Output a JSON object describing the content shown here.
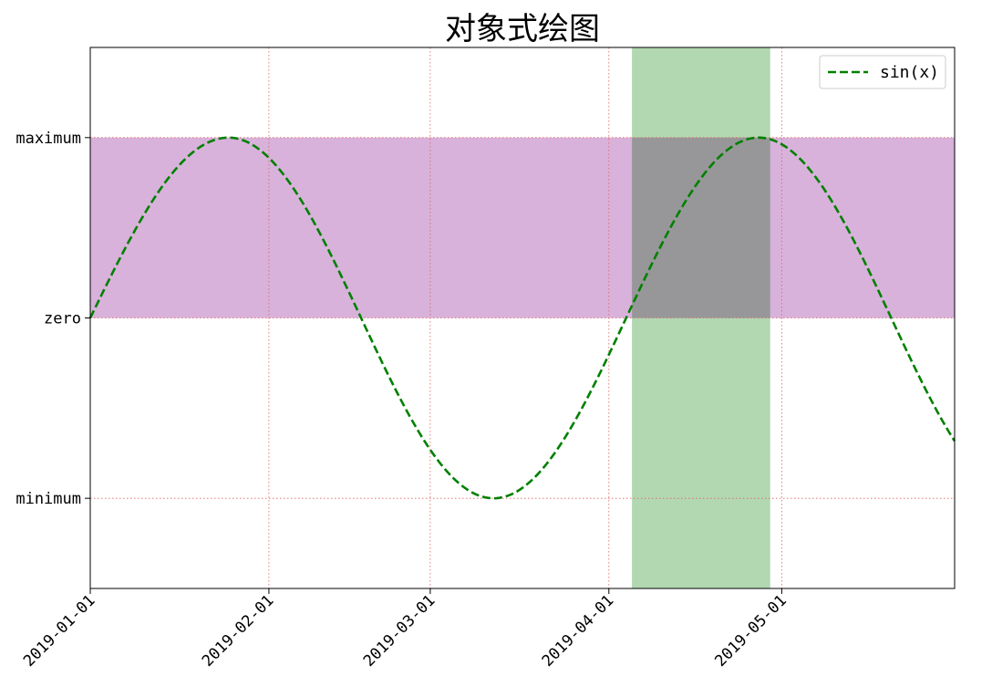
{
  "chart_data": {
    "type": "line",
    "title": "对象式绘图",
    "xlabel": "",
    "ylabel": "",
    "x_axis": {
      "type": "date",
      "range": [
        "2019-01-01",
        "2019-05-31"
      ],
      "ticks": [
        "2019-01-01",
        "2019-02-01",
        "2019-03-01",
        "2019-04-01",
        "2019-05-01"
      ],
      "tick_label_rotation_deg": 45
    },
    "y_axis": {
      "range": [
        -1.5,
        1.5
      ],
      "ticks": [
        {
          "value": -1,
          "label": "minimum"
        },
        {
          "value": 0,
          "label": "zero"
        },
        {
          "value": 1,
          "label": "maximum"
        }
      ]
    },
    "grid": true,
    "grid_style": {
      "color": "#e06060",
      "style": "dotted"
    },
    "series": [
      {
        "name": "sin(x)",
        "color": "#008000",
        "style": "dashed",
        "function": "sin",
        "x_start": "2019-01-01",
        "x_end": "2019-05-31",
        "x_peak_1": "2019-01-25",
        "x_trough": "2019-03-12",
        "x_peak_2": "2019-04-27",
        "y_at_end": -0.54
      }
    ],
    "spans": [
      {
        "orientation": "horizontal",
        "y_from": 0,
        "y_to": 1,
        "color": "#d8b2db"
      },
      {
        "orientation": "vertical",
        "x_from": "2019-04-05",
        "x_to": "2019-04-29",
        "color": "#b2d8b2"
      }
    ],
    "legend": {
      "placement": "top-right",
      "entries": [
        "sin(x)"
      ]
    }
  }
}
